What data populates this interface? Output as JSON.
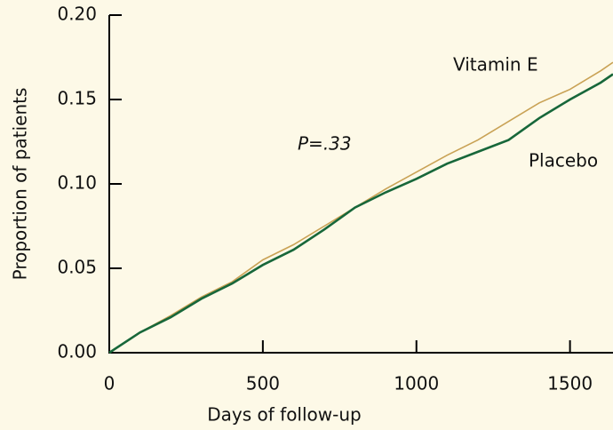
{
  "chart_data": {
    "type": "line",
    "xlabel": "Days of follow-up",
    "ylabel": "Proportion of patients",
    "x": [
      0,
      100,
      200,
      300,
      400,
      500,
      600,
      700,
      800,
      900,
      1000,
      1100,
      1200,
      1300,
      1400,
      1500,
      1600,
      1640
    ],
    "series": [
      {
        "name": "Vitamin E",
        "color": "#c9a255",
        "values": [
          0,
          0.012,
          0.022,
          0.033,
          0.042,
          0.055,
          0.064,
          0.075,
          0.086,
          0.097,
          0.107,
          0.117,
          0.126,
          0.137,
          0.148,
          0.156,
          0.167,
          0.172
        ]
      },
      {
        "name": "Placebo",
        "color": "#17673a",
        "values": [
          0,
          0.012,
          0.021,
          0.032,
          0.041,
          0.052,
          0.061,
          0.073,
          0.086,
          0.095,
          0.103,
          0.112,
          0.119,
          0.126,
          0.139,
          0.15,
          0.16,
          0.165
        ]
      }
    ],
    "annotations": [
      "P=.33"
    ],
    "xlim": [
      0,
      1640
    ],
    "ylim": [
      0,
      0.2
    ],
    "xticks": [
      0,
      500,
      1000,
      1500
    ],
    "yticks": [
      {
        "value": 0,
        "label": "0.00"
      },
      0.05,
      {
        "value": 0.1,
        "label": "0.10"
      },
      0.15,
      {
        "value": 0.2,
        "label": "0.20"
      }
    ]
  }
}
